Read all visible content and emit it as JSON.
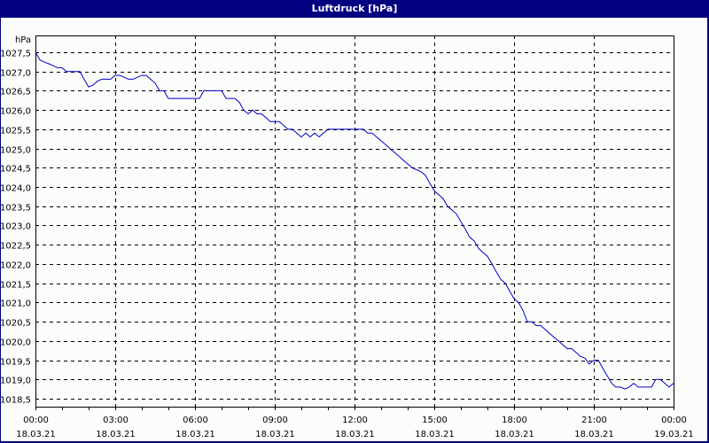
{
  "window": {
    "title": "Luftdruck [hPa]"
  },
  "colors": {
    "titlebar": "#000080",
    "background": "#fbfdfb",
    "line": "#0000cc",
    "grid": "#000000"
  },
  "chart_data": {
    "type": "line",
    "title": "Luftdruck [hPa]",
    "xlabel": "",
    "ylabel": "hPa",
    "ylim": [
      1018.3,
      1027.9
    ],
    "xlim_hours": [
      0,
      24
    ],
    "grid": true,
    "legend": "none",
    "y_ticks": [
      "1027,5",
      "1027,0",
      "1026,5",
      "1026,0",
      "1025,5",
      "1025,0",
      "1024,5",
      "1024,0",
      "1023,5",
      "1023,0",
      "1022,5",
      "1022,0",
      "1021,5",
      "1021,0",
      "1020,5",
      "1020,0",
      "1019,5",
      "1019,0",
      "1018,5"
    ],
    "y_tick_values": [
      1027.5,
      1027.0,
      1026.5,
      1026.0,
      1025.5,
      1025.0,
      1024.5,
      1024.0,
      1023.5,
      1023.0,
      1022.5,
      1022.0,
      1021.5,
      1021.0,
      1020.5,
      1020.0,
      1019.5,
      1019.0,
      1018.5
    ],
    "x_ticks": [
      {
        "time": "00:00",
        "date": "18.03.21",
        "hour": 0
      },
      {
        "time": "03:00",
        "date": "18.03.21",
        "hour": 3
      },
      {
        "time": "06:00",
        "date": "18.03.21",
        "hour": 6
      },
      {
        "time": "09:00",
        "date": "18.03.21",
        "hour": 9
      },
      {
        "time": "12:00",
        "date": "18.03.21",
        "hour": 12
      },
      {
        "time": "15:00",
        "date": "18.03.21",
        "hour": 15
      },
      {
        "time": "18:00",
        "date": "18.03.21",
        "hour": 18
      },
      {
        "time": "21:00",
        "date": "18.03.21",
        "hour": 21
      },
      {
        "time": "00:00",
        "date": "19.03.21",
        "hour": 24
      }
    ],
    "series": [
      {
        "name": "Luftdruck",
        "unit": "hPa",
        "points": [
          [
            0.0,
            1027.5
          ],
          [
            0.17,
            1027.3
          ],
          [
            0.33,
            1027.25
          ],
          [
            0.5,
            1027.2
          ],
          [
            0.67,
            1027.15
          ],
          [
            0.83,
            1027.1
          ],
          [
            1.0,
            1027.1
          ],
          [
            1.17,
            1027.0
          ],
          [
            1.33,
            1027.0
          ],
          [
            1.5,
            1027.0
          ],
          [
            1.67,
            1027.0
          ],
          [
            1.83,
            1026.8
          ],
          [
            2.0,
            1026.6
          ],
          [
            2.17,
            1026.65
          ],
          [
            2.33,
            1026.75
          ],
          [
            2.5,
            1026.8
          ],
          [
            2.67,
            1026.8
          ],
          [
            2.83,
            1026.8
          ],
          [
            3.0,
            1026.9
          ],
          [
            3.17,
            1026.9
          ],
          [
            3.33,
            1026.85
          ],
          [
            3.5,
            1026.8
          ],
          [
            3.67,
            1026.8
          ],
          [
            3.83,
            1026.85
          ],
          [
            4.0,
            1026.9
          ],
          [
            4.17,
            1026.9
          ],
          [
            4.33,
            1026.8
          ],
          [
            4.5,
            1026.7
          ],
          [
            4.67,
            1026.5
          ],
          [
            4.83,
            1026.5
          ],
          [
            5.0,
            1026.3
          ],
          [
            5.33,
            1026.3
          ],
          [
            5.67,
            1026.3
          ],
          [
            6.0,
            1026.3
          ],
          [
            6.17,
            1026.3
          ],
          [
            6.33,
            1026.5
          ],
          [
            6.5,
            1026.5
          ],
          [
            6.67,
            1026.5
          ],
          [
            6.83,
            1026.5
          ],
          [
            7.0,
            1026.5
          ],
          [
            7.17,
            1026.3
          ],
          [
            7.33,
            1026.3
          ],
          [
            7.5,
            1026.3
          ],
          [
            7.67,
            1026.2
          ],
          [
            7.83,
            1026.0
          ],
          [
            8.0,
            1025.9
          ],
          [
            8.17,
            1026.0
          ],
          [
            8.33,
            1025.9
          ],
          [
            8.5,
            1025.9
          ],
          [
            8.67,
            1025.8
          ],
          [
            8.83,
            1025.7
          ],
          [
            9.0,
            1025.7
          ],
          [
            9.17,
            1025.7
          ],
          [
            9.33,
            1025.6
          ],
          [
            9.5,
            1025.5
          ],
          [
            9.67,
            1025.5
          ],
          [
            9.83,
            1025.4
          ],
          [
            10.0,
            1025.3
          ],
          [
            10.17,
            1025.4
          ],
          [
            10.33,
            1025.3
          ],
          [
            10.5,
            1025.4
          ],
          [
            10.67,
            1025.3
          ],
          [
            10.83,
            1025.4
          ],
          [
            11.0,
            1025.5
          ],
          [
            11.33,
            1025.5
          ],
          [
            11.67,
            1025.5
          ],
          [
            12.0,
            1025.5
          ],
          [
            12.33,
            1025.5
          ],
          [
            12.5,
            1025.4
          ],
          [
            12.67,
            1025.4
          ],
          [
            12.83,
            1025.3
          ],
          [
            13.0,
            1025.2
          ],
          [
            13.17,
            1025.1
          ],
          [
            13.33,
            1025.0
          ],
          [
            13.5,
            1024.9
          ],
          [
            13.67,
            1024.8
          ],
          [
            13.83,
            1024.7
          ],
          [
            14.0,
            1024.6
          ],
          [
            14.17,
            1024.5
          ],
          [
            14.33,
            1024.45
          ],
          [
            14.5,
            1024.4
          ],
          [
            14.67,
            1024.3
          ],
          [
            14.83,
            1024.1
          ],
          [
            15.0,
            1023.9
          ],
          [
            15.17,
            1023.8
          ],
          [
            15.33,
            1023.7
          ],
          [
            15.5,
            1023.5
          ],
          [
            15.67,
            1023.4
          ],
          [
            15.83,
            1023.3
          ],
          [
            16.0,
            1023.1
          ],
          [
            16.17,
            1022.9
          ],
          [
            16.33,
            1022.7
          ],
          [
            16.5,
            1022.6
          ],
          [
            16.67,
            1022.4
          ],
          [
            16.83,
            1022.3
          ],
          [
            17.0,
            1022.2
          ],
          [
            17.17,
            1022.0
          ],
          [
            17.33,
            1021.8
          ],
          [
            17.5,
            1021.6
          ],
          [
            17.67,
            1021.5
          ],
          [
            17.83,
            1021.3
          ],
          [
            18.0,
            1021.1
          ],
          [
            18.17,
            1021.0
          ],
          [
            18.33,
            1020.8
          ],
          [
            18.5,
            1020.5
          ],
          [
            18.67,
            1020.5
          ],
          [
            18.83,
            1020.4
          ],
          [
            19.0,
            1020.4
          ],
          [
            19.17,
            1020.3
          ],
          [
            19.33,
            1020.2
          ],
          [
            19.5,
            1020.1
          ],
          [
            19.67,
            1020.0
          ],
          [
            19.83,
            1019.9
          ],
          [
            20.0,
            1019.8
          ],
          [
            20.17,
            1019.8
          ],
          [
            20.33,
            1019.7
          ],
          [
            20.5,
            1019.6
          ],
          [
            20.67,
            1019.55
          ],
          [
            20.83,
            1019.4
          ],
          [
            21.0,
            1019.5
          ],
          [
            21.17,
            1019.5
          ],
          [
            21.33,
            1019.3
          ],
          [
            21.5,
            1019.1
          ],
          [
            21.67,
            1018.9
          ],
          [
            21.83,
            1018.8
          ],
          [
            22.0,
            1018.8
          ],
          [
            22.17,
            1018.75
          ],
          [
            22.33,
            1018.8
          ],
          [
            22.5,
            1018.9
          ],
          [
            22.67,
            1018.8
          ],
          [
            22.83,
            1018.8
          ],
          [
            23.0,
            1018.8
          ],
          [
            23.17,
            1018.8
          ],
          [
            23.33,
            1019.0
          ],
          [
            23.5,
            1019.0
          ],
          [
            23.67,
            1018.9
          ],
          [
            23.83,
            1018.8
          ],
          [
            24.0,
            1018.9
          ]
        ]
      }
    ]
  }
}
